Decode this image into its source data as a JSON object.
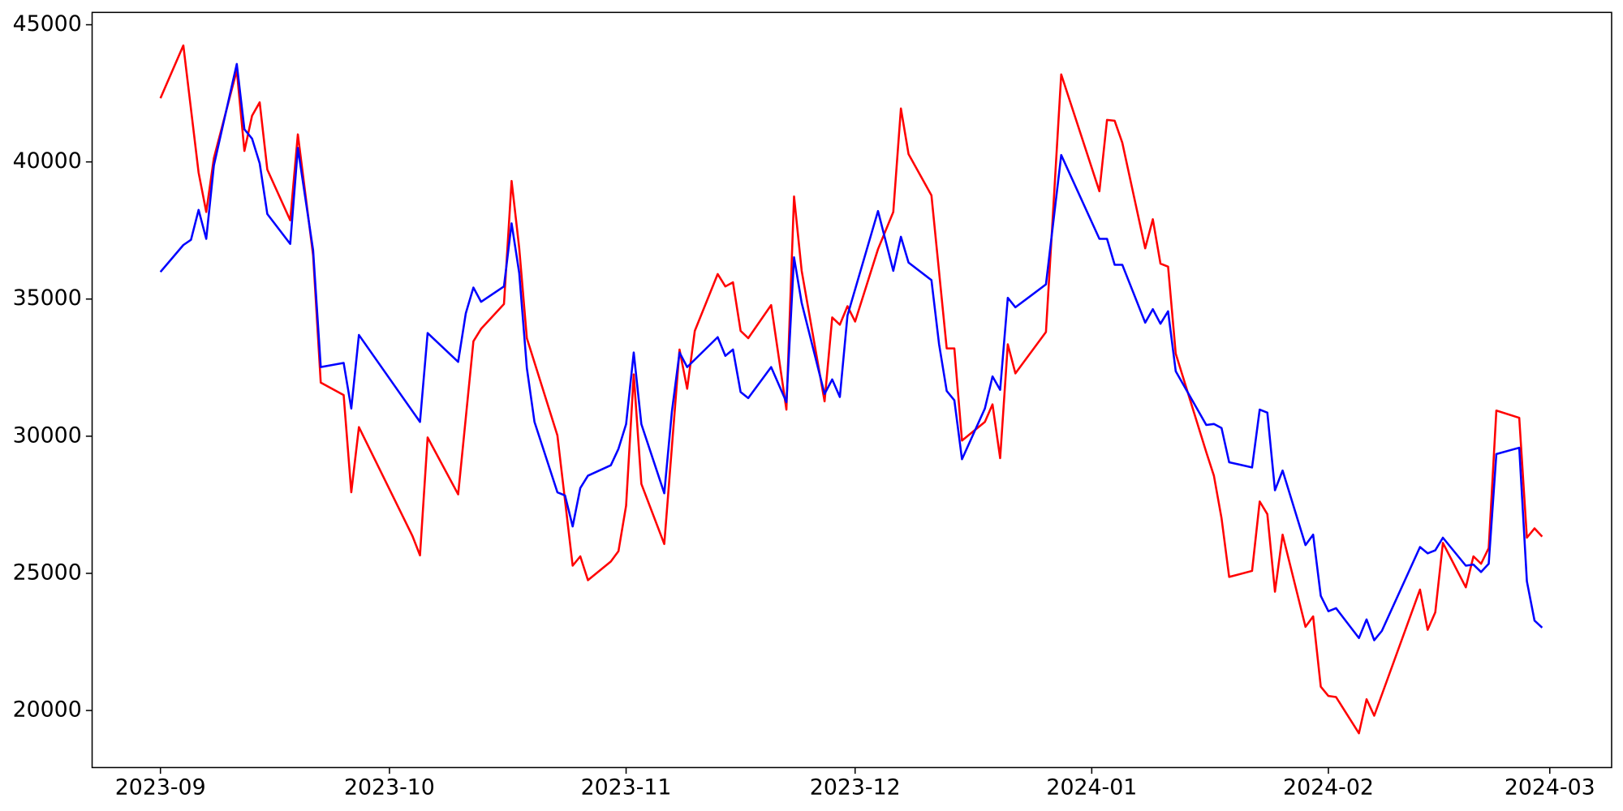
{
  "chart_data": {
    "type": "line",
    "xlim": [
      -8.95,
      190.1
    ],
    "xticks": [
      {
        "value": 0,
        "label": "2023-09"
      },
      {
        "value": 30,
        "label": "2023-10"
      },
      {
        "value": 61,
        "label": "2023-11"
      },
      {
        "value": 91,
        "label": "2023-12"
      },
      {
        "value": 122,
        "label": "2024-01"
      },
      {
        "value": 153,
        "label": "2024-02"
      },
      {
        "value": 182,
        "label": "2024-03"
      }
    ],
    "ylim": [
      17920,
      45450
    ],
    "yticks": [
      20000,
      25000,
      30000,
      35000,
      40000,
      45000
    ],
    "grid": false,
    "series": [
      {
        "color": "#ff0000",
        "x": [
          0,
          3,
          5,
          6,
          7,
          10,
          11,
          12,
          13,
          14,
          17,
          18,
          20,
          21,
          24,
          25,
          26,
          33,
          34,
          35,
          39,
          41,
          42,
          45,
          46,
          47,
          48,
          52,
          54,
          55,
          56,
          59,
          60,
          61,
          62,
          63,
          66,
          68,
          69,
          70,
          73,
          74,
          75,
          76,
          77,
          80,
          82,
          83,
          84,
          87,
          88,
          89,
          90,
          91,
          94,
          96,
          97,
          98,
          101,
          103,
          104,
          105,
          108,
          109,
          110,
          111,
          112,
          116,
          118,
          123,
          124,
          125,
          126,
          129,
          130,
          131,
          132,
          133,
          137,
          138,
          139,
          140,
          143,
          144,
          145,
          146,
          147,
          150,
          151,
          152,
          153,
          154,
          157,
          158,
          159,
          165,
          166,
          167,
          168,
          171,
          172,
          173,
          174,
          175,
          178,
          179,
          180,
          181
        ],
        "values": [
          42323,
          44246,
          39607,
          38174,
          40135,
          43341,
          40400,
          41682,
          42172,
          39720,
          37873,
          41003,
          36591,
          31953,
          31500,
          27955,
          30330,
          26370,
          25654,
          29954,
          27880,
          33460,
          33912,
          34818,
          39306,
          36855,
          33574,
          30030,
          25280,
          25620,
          24750,
          25430,
          25810,
          27466,
          32255,
          28260,
          26070,
          33160,
          31730,
          33840,
          35912,
          35460,
          35610,
          33840,
          33574,
          34780,
          30970,
          38740,
          36030,
          31270,
          34330,
          34065,
          34740,
          34180,
          36820,
          38175,
          41946,
          40285,
          38780,
          33200,
          33200,
          29840,
          30520,
          31160,
          29200,
          33350,
          32290,
          33800,
          43190,
          38930,
          41530,
          41500,
          40700,
          36850,
          37910,
          36290,
          36180,
          33010,
          29420,
          28560,
          27010,
          24870,
          25090,
          27620,
          27160,
          24330,
          26410,
          23050,
          23430,
          20870,
          20530,
          20490,
          19170,
          20410,
          19810,
          24410,
          22940,
          23580,
          26110,
          24490,
          25620,
          25350,
          25920,
          30935,
          30670,
          26300,
          26640,
          26340
        ]
      },
      {
        "color": "#0000ff",
        "x": [
          0,
          3,
          4,
          5,
          6,
          7,
          10,
          11,
          12,
          13,
          14,
          17,
          18,
          20,
          21,
          24,
          25,
          26,
          34,
          35,
          39,
          40,
          41,
          42,
          45,
          46,
          47,
          48,
          49,
          52,
          53,
          54,
          55,
          56,
          59,
          60,
          61,
          62,
          63,
          66,
          67,
          68,
          69,
          73,
          74,
          75,
          76,
          77,
          80,
          82,
          83,
          84,
          87,
          88,
          89,
          90,
          94,
          96,
          97,
          98,
          101,
          102,
          103,
          104,
          105,
          108,
          109,
          110,
          111,
          112,
          116,
          118,
          123,
          124,
          125,
          126,
          129,
          130,
          131,
          132,
          133,
          137,
          138,
          139,
          140,
          143,
          144,
          145,
          146,
          147,
          150,
          151,
          152,
          153,
          154,
          157,
          158,
          159,
          160,
          165,
          166,
          167,
          168,
          171,
          172,
          173,
          174,
          175,
          178,
          179,
          180,
          181
        ],
        "values": [
          35990,
          36970,
          37160,
          38250,
          37195,
          39870,
          43570,
          41190,
          40850,
          39950,
          38100,
          37010,
          40510,
          36780,
          32520,
          32670,
          31010,
          33690,
          30520,
          33760,
          32710,
          34480,
          35420,
          34900,
          35460,
          37760,
          35950,
          32480,
          30520,
          27955,
          27840,
          26710,
          28110,
          28560,
          28940,
          29540,
          30440,
          33050,
          30440,
          27920,
          30900,
          33050,
          32520,
          33610,
          32930,
          33160,
          31610,
          31390,
          32520,
          31240,
          36520,
          34860,
          31540,
          32070,
          31430,
          34400,
          38210,
          36030,
          37270,
          36330,
          35690,
          33350,
          31650,
          31310,
          29160,
          31010,
          32180,
          31690,
          35045,
          34700,
          35535,
          40250,
          37195,
          37195,
          36250,
          36250,
          34140,
          34630,
          34100,
          34555,
          32370,
          30410,
          30445,
          30300,
          29050,
          28860,
          30970,
          30860,
          28030,
          28750,
          26030,
          26410,
          24180,
          23620,
          23730,
          22640,
          23320,
          22560,
          22900,
          25960,
          25730,
          25840,
          26300,
          25280,
          25320,
          25050,
          25350,
          29350,
          29580,
          24710,
          23280,
          23020
        ]
      }
    ]
  }
}
